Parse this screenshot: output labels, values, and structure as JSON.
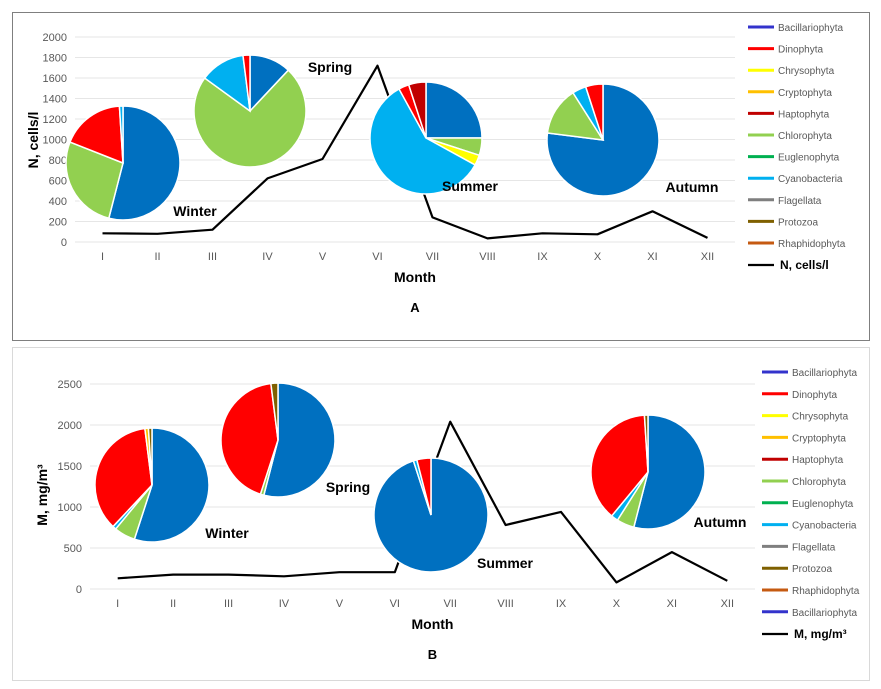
{
  "chart_data": [
    {
      "type": "line",
      "panel_label": "A",
      "xlabel": "Month",
      "ylabel": "N, cells/l",
      "ylim": [
        0,
        2000
      ],
      "yticks": [
        0,
        200,
        400,
        600,
        800,
        1000,
        1200,
        1400,
        1600,
        1800,
        2000
      ],
      "categories": [
        "I",
        "II",
        "III",
        "IV",
        "V",
        "VI",
        "VII",
        "VIII",
        "IX",
        "X",
        "XI",
        "XII"
      ],
      "series": [
        {
          "name": "N, cells/l",
          "values": [
            85,
            80,
            120,
            620,
            810,
            1720,
            240,
            35,
            85,
            75,
            300,
            40
          ]
        }
      ],
      "legend": {
        "entries": [
          "Bacillariophyta",
          "Dinophyta",
          "Chrysophyta",
          "Cryptophyta",
          "Haptophyta",
          "Chlorophyta",
          "Euglenophyta",
          "Cyanobacteria",
          "Flagellata",
          "Protozoa",
          "Rhaphidophyta"
        ],
        "colors": [
          "#3333cc",
          "#ff0000",
          "#ffff00",
          "#ffc000",
          "#c00000",
          "#92d050",
          "#00b050",
          "#00b0f0",
          "#7f7f7f",
          "#7f6000",
          "#c55a11"
        ],
        "line_entry": "N, cells/l",
        "position": "right"
      },
      "pies": [
        {
          "season": "Winter",
          "slices": [
            {
              "taxon": "Bacillariophyta",
              "color": "#0070c0",
              "percent": 54
            },
            {
              "taxon": "Chlorophyta",
              "color": "#92d050",
              "percent": 27
            },
            {
              "taxon": "Dinophyta",
              "color": "#ff0000",
              "percent": 18
            },
            {
              "taxon": "Cyanobacteria",
              "color": "#00b0f0",
              "percent": 1
            }
          ]
        },
        {
          "season": "Spring",
          "slices": [
            {
              "taxon": "Bacillariophyta",
              "color": "#0070c0",
              "percent": 12
            },
            {
              "taxon": "Chlorophyta",
              "color": "#92d050",
              "percent": 73
            },
            {
              "taxon": "Cyanobacteria",
              "color": "#00b0f0",
              "percent": 13
            },
            {
              "taxon": "Dinophyta",
              "color": "#ff0000",
              "percent": 2
            }
          ]
        },
        {
          "season": "Summer",
          "slices": [
            {
              "taxon": "Bacillariophyta",
              "color": "#0070c0",
              "percent": 25
            },
            {
              "taxon": "Chlorophyta",
              "color": "#92d050",
              "percent": 5
            },
            {
              "taxon": "Chrysophyta",
              "color": "#ffff00",
              "percent": 3
            },
            {
              "taxon": "Cyanobacteria",
              "color": "#00b0f0",
              "percent": 59
            },
            {
              "taxon": "Dinophyta",
              "color": "#ff0000",
              "percent": 3
            },
            {
              "taxon": "Haptophyta",
              "color": "#c00000",
              "percent": 5
            }
          ]
        },
        {
          "season": "Autumn",
          "slices": [
            {
              "taxon": "Bacillariophyta",
              "color": "#0070c0",
              "percent": 77
            },
            {
              "taxon": "Chlorophyta",
              "color": "#92d050",
              "percent": 14
            },
            {
              "taxon": "Cyanobacteria",
              "color": "#00b0f0",
              "percent": 4
            },
            {
              "taxon": "Dinophyta",
              "color": "#ff0000",
              "percent": 5
            }
          ]
        }
      ]
    },
    {
      "type": "line",
      "panel_label": "B",
      "xlabel": "Month",
      "ylabel": "M, mg/m³",
      "ylim": [
        0,
        2500
      ],
      "yticks": [
        0,
        500,
        1000,
        1500,
        2000,
        2500
      ],
      "categories": [
        "I",
        "II",
        "III",
        "IV",
        "V",
        "VI",
        "VII",
        "VIII",
        "IX",
        "X",
        "XI",
        "XII"
      ],
      "series": [
        {
          "name": "M, mg/m³",
          "values": [
            130,
            175,
            175,
            155,
            205,
            205,
            2040,
            780,
            940,
            80,
            450,
            100
          ]
        }
      ],
      "legend": {
        "entries": [
          "Bacillariophyta",
          "Dinophyta",
          "Chrysophyta",
          "Cryptophyta",
          "Haptophyta",
          "Chlorophyta",
          "Euglenophyta",
          "Cyanobacteria",
          "Flagellata",
          "Protozoa",
          "Rhaphidophyta",
          "Bacillariophyta"
        ],
        "colors": [
          "#3333cc",
          "#ff0000",
          "#ffff00",
          "#ffc000",
          "#c00000",
          "#92d050",
          "#00b050",
          "#00b0f0",
          "#7f7f7f",
          "#7f6000",
          "#c55a11",
          "#3333cc"
        ],
        "line_entry": "M, mg/m³",
        "position": "right"
      },
      "pies": [
        {
          "season": "Winter",
          "slices": [
            {
              "taxon": "Bacillariophyta",
              "color": "#0070c0",
              "percent": 55
            },
            {
              "taxon": "Chlorophyta",
              "color": "#92d050",
              "percent": 6
            },
            {
              "taxon": "Cyanobacteria",
              "color": "#00b0f0",
              "percent": 1
            },
            {
              "taxon": "Dinophyta",
              "color": "#ff0000",
              "percent": 36
            },
            {
              "taxon": "Cryptophyta",
              "color": "#ffc000",
              "percent": 1
            },
            {
              "taxon": "Protozoa",
              "color": "#7f6000",
              "percent": 1
            }
          ]
        },
        {
          "season": "Spring",
          "slices": [
            {
              "taxon": "Bacillariophyta",
              "color": "#0070c0",
              "percent": 54
            },
            {
              "taxon": "Chlorophyta",
              "color": "#92d050",
              "percent": 1
            },
            {
              "taxon": "Dinophyta",
              "color": "#ff0000",
              "percent": 43
            },
            {
              "taxon": "Protozoa",
              "color": "#7f6000",
              "percent": 2
            }
          ]
        },
        {
          "season": "Summer",
          "slices": [
            {
              "taxon": "Bacillariophyta",
              "color": "#0070c0",
              "percent": 95
            },
            {
              "taxon": "Cyanobacteria",
              "color": "#00b0f0",
              "percent": 1
            },
            {
              "taxon": "Dinophyta",
              "color": "#ff0000",
              "percent": 4
            }
          ]
        },
        {
          "season": "Autumn",
          "slices": [
            {
              "taxon": "Bacillariophyta",
              "color": "#0070c0",
              "percent": 54
            },
            {
              "taxon": "Chlorophyta",
              "color": "#92d050",
              "percent": 5
            },
            {
              "taxon": "Cyanobacteria",
              "color": "#00b0f0",
              "percent": 2
            },
            {
              "taxon": "Dinophyta",
              "color": "#ff0000",
              "percent": 38
            },
            {
              "taxon": "Protozoa",
              "color": "#7f6000",
              "percent": 1
            }
          ]
        }
      ]
    }
  ]
}
